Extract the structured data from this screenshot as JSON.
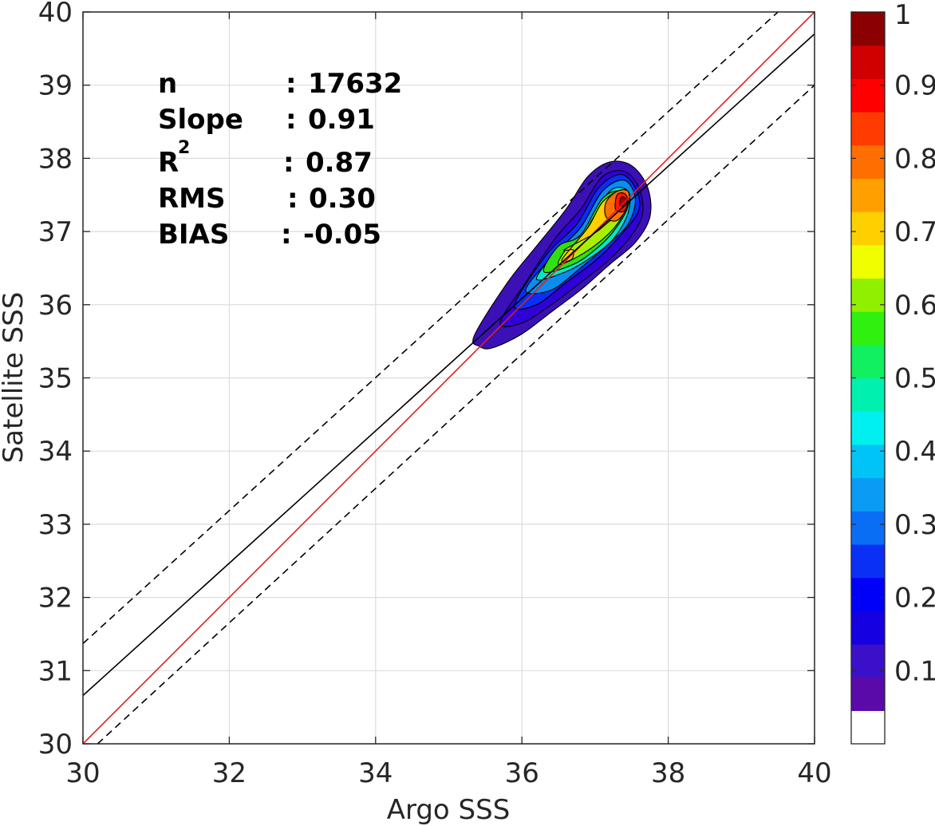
{
  "chart_data": {
    "type": "contour",
    "xlabel": "Argo SSS",
    "ylabel": "Satellite SSS",
    "xlim": [
      30,
      40
    ],
    "ylim": [
      30,
      40
    ],
    "xticks": [
      "30",
      "32",
      "34",
      "36",
      "38",
      "40"
    ],
    "yticks": [
      "30",
      "31",
      "32",
      "33",
      "34",
      "35",
      "36",
      "37",
      "38",
      "39",
      "40"
    ],
    "grid": true,
    "stats": [
      {
        "label": "n",
        "sep": ":",
        "value": "17632"
      },
      {
        "label": "Slope",
        "sep": ":",
        "value": "0.91"
      },
      {
        "label": "R",
        "superscript": "2",
        "sep": ":",
        "value": "0.87"
      },
      {
        "label": "RMS",
        "sep": ":",
        "value": "0.30"
      },
      {
        "label": "BIAS",
        "sep": ":",
        "value": "-0.05"
      }
    ],
    "lines": [
      {
        "style": "one-to-one",
        "color": "#e02020",
        "x": [
          30,
          40
        ],
        "y": [
          30,
          40
        ]
      },
      {
        "style": "regression",
        "color": "#000000",
        "x": [
          30,
          40
        ],
        "y": [
          30.66,
          39.7
        ]
      },
      {
        "style": "upper-bound-dashed",
        "color": "#000000",
        "x": [
          30,
          39.5
        ],
        "y": [
          31.37,
          40
        ]
      },
      {
        "style": "lower-bound-dashed",
        "color": "#000000",
        "x": [
          30.2,
          40
        ],
        "y": [
          30,
          39.0
        ]
      }
    ],
    "density_contours": [
      {
        "level": 0.05,
        "color": "#3b10b6",
        "points": [
          [
            35.35,
            35.58
          ],
          [
            35.42,
            35.43
          ],
          [
            35.6,
            35.41
          ],
          [
            36.0,
            35.6
          ],
          [
            36.4,
            35.9
          ],
          [
            36.8,
            36.2
          ],
          [
            37.2,
            36.55
          ],
          [
            37.55,
            36.85
          ],
          [
            37.75,
            37.2
          ],
          [
            37.72,
            37.6
          ],
          [
            37.5,
            37.9
          ],
          [
            37.2,
            37.95
          ],
          [
            36.9,
            37.75
          ],
          [
            36.6,
            37.3
          ],
          [
            36.2,
            36.8
          ],
          [
            35.8,
            36.3
          ]
        ]
      },
      {
        "level": 0.1,
        "color": "#2f00d8",
        "points": [
          [
            35.7,
            35.75
          ],
          [
            36.0,
            35.75
          ],
          [
            36.4,
            36.0
          ],
          [
            36.8,
            36.3
          ],
          [
            37.2,
            36.62
          ],
          [
            37.5,
            36.95
          ],
          [
            37.65,
            37.25
          ],
          [
            37.6,
            37.6
          ],
          [
            37.4,
            37.82
          ],
          [
            37.1,
            37.75
          ],
          [
            36.8,
            37.3
          ],
          [
            36.45,
            36.9
          ],
          [
            36.05,
            36.3
          ]
        ]
      },
      {
        "level": 0.2,
        "color": "#0a2ef5",
        "points": [
          [
            35.9,
            36.0
          ],
          [
            36.2,
            36.0
          ],
          [
            36.6,
            36.3
          ],
          [
            37.0,
            36.6
          ],
          [
            37.35,
            36.95
          ],
          [
            37.6,
            37.3
          ],
          [
            37.55,
            37.6
          ],
          [
            37.35,
            37.78
          ],
          [
            37.05,
            37.6
          ],
          [
            36.75,
            37.1
          ],
          [
            36.35,
            36.7
          ]
        ]
      },
      {
        "level": 0.3,
        "color": "#0a8cf0",
        "points": [
          [
            36.05,
            36.2
          ],
          [
            36.4,
            36.2
          ],
          [
            36.8,
            36.5
          ],
          [
            37.15,
            36.8
          ],
          [
            37.45,
            37.1
          ],
          [
            37.55,
            37.45
          ],
          [
            37.4,
            37.7
          ],
          [
            37.1,
            37.55
          ],
          [
            36.8,
            37.05
          ],
          [
            36.45,
            36.7
          ]
        ]
      },
      {
        "level": 0.4,
        "color": "#00e8c8",
        "points": [
          [
            36.2,
            36.35
          ],
          [
            36.6,
            36.45
          ],
          [
            36.95,
            36.65
          ],
          [
            37.25,
            36.9
          ],
          [
            37.45,
            37.25
          ],
          [
            37.45,
            37.55
          ],
          [
            37.2,
            37.55
          ],
          [
            36.85,
            37.0
          ],
          [
            36.5,
            36.75
          ]
        ]
      },
      {
        "level": 0.5,
        "color": "#30e010",
        "points": [
          [
            36.3,
            36.45
          ],
          [
            36.7,
            36.55
          ],
          [
            37.0,
            36.75
          ],
          [
            37.25,
            37.0
          ],
          [
            37.45,
            37.35
          ],
          [
            37.35,
            37.55
          ],
          [
            37.1,
            37.45
          ],
          [
            36.8,
            36.95
          ],
          [
            36.5,
            36.8
          ]
        ]
      },
      {
        "level": 0.6,
        "color": "#a8f000",
        "points": [
          [
            36.5,
            36.55
          ],
          [
            36.75,
            36.65
          ],
          [
            37.05,
            36.85
          ],
          [
            37.3,
            37.1
          ],
          [
            37.45,
            37.4
          ],
          [
            37.3,
            37.55
          ],
          [
            37.05,
            37.3
          ],
          [
            36.8,
            36.9
          ],
          [
            36.6,
            36.75
          ]
        ]
      },
      {
        "level": 0.7,
        "color": "#ffd000",
        "points": [
          [
            36.55,
            36.62
          ],
          [
            36.68,
            36.62
          ],
          [
            36.7,
            36.75
          ],
          [
            36.58,
            36.75
          ],
          [
            36.95,
            36.95
          ],
          [
            37.15,
            37.1
          ],
          [
            37.4,
            37.35
          ],
          [
            37.35,
            37.55
          ],
          [
            37.1,
            37.4
          ],
          [
            36.9,
            37.05
          ]
        ]
      },
      {
        "level": 0.8,
        "color": "#ff7000",
        "points": [
          [
            37.15,
            37.2
          ],
          [
            37.3,
            37.15
          ],
          [
            37.45,
            37.35
          ],
          [
            37.45,
            37.55
          ],
          [
            37.3,
            37.55
          ],
          [
            37.15,
            37.4
          ]
        ]
      },
      {
        "level": 0.9,
        "color": "#ff1800",
        "points": [
          [
            37.28,
            37.3
          ],
          [
            37.4,
            37.28
          ],
          [
            37.45,
            37.42
          ],
          [
            37.4,
            37.52
          ],
          [
            37.3,
            37.5
          ]
        ]
      },
      {
        "level": 1.0,
        "color": "#a00000",
        "points": [
          [
            37.34,
            37.36
          ],
          [
            37.42,
            37.36
          ],
          [
            37.43,
            37.44
          ],
          [
            37.36,
            37.47
          ]
        ]
      }
    ],
    "colorbar": {
      "range": [
        0,
        1
      ],
      "ticks": [
        "0.1",
        "0.2",
        "0.3",
        "0.4",
        "0.5",
        "0.6",
        "0.7",
        "0.8",
        "0.9",
        "1"
      ],
      "tick_values": [
        0.1,
        0.2,
        0.3,
        0.4,
        0.5,
        0.6,
        0.7,
        0.8,
        0.9,
        1.0
      ],
      "colors": [
        "#ffffff",
        "#5a0aa8",
        "#3b10c8",
        "#1400e0",
        "#0000f8",
        "#0a30f5",
        "#0a6ef5",
        "#0a9cf5",
        "#00c4f5",
        "#00f0f0",
        "#00f0b0",
        "#10f060",
        "#30f010",
        "#90f000",
        "#f0ff00",
        "#ffd000",
        "#ffa000",
        "#ff6e00",
        "#ff3c00",
        "#ff0000",
        "#d00000",
        "#8b0000"
      ]
    }
  }
}
